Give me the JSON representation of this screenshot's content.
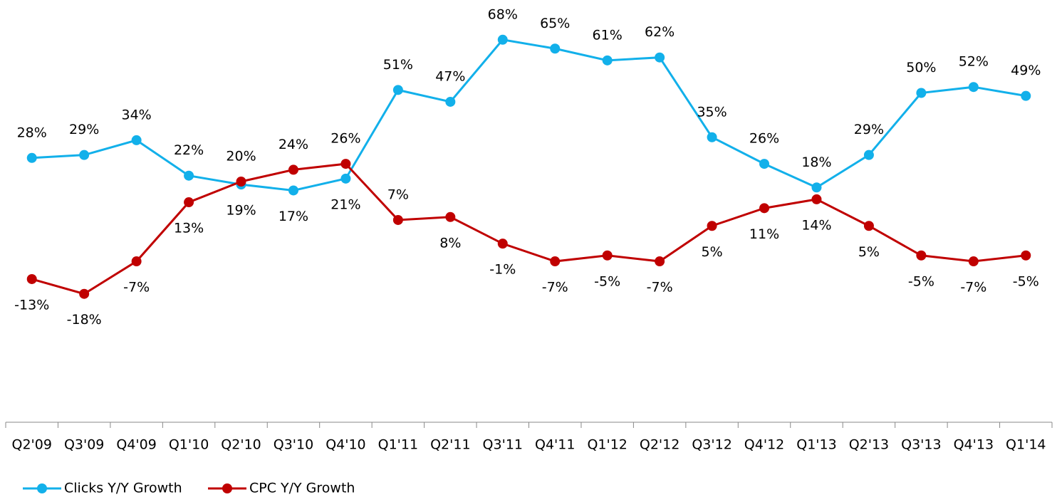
{
  "chart_data": {
    "type": "line",
    "categories": [
      "Q2'09",
      "Q3'09",
      "Q4'09",
      "Q1'10",
      "Q2'10",
      "Q3'10",
      "Q4'10",
      "Q1'11",
      "Q2'11",
      "Q3'11",
      "Q4'11",
      "Q1'12",
      "Q2'12",
      "Q3'12",
      "Q4'12",
      "Q1'13",
      "Q2'13",
      "Q3'13",
      "Q4'13",
      "Q1'14"
    ],
    "series": [
      {
        "name": "Clicks Y/Y Growth",
        "color": "#12b0ea",
        "values": [
          28,
          29,
          34,
          22,
          19,
          17,
          21,
          51,
          47,
          68,
          65,
          61,
          62,
          35,
          26,
          18,
          29,
          50,
          52,
          49
        ],
        "value_labels": [
          "28%",
          "29%",
          "34%",
          "22%",
          "19%",
          "17%",
          "21%",
          "51%",
          "47%",
          "68%",
          "65%",
          "61%",
          "62%",
          "35%",
          "26%",
          "18%",
          "29%",
          "50%",
          "52%",
          "49%"
        ]
      },
      {
        "name": "CPC Y/Y Growth",
        "color": "#c00000",
        "values": [
          -13,
          -18,
          -7,
          13,
          20,
          24,
          26,
          7,
          8,
          -1,
          -7,
          -5,
          -7,
          5,
          11,
          14,
          5,
          -5,
          -7,
          -5
        ],
        "value_labels": [
          "-13%",
          "-18%",
          "-7%",
          "13%",
          "20%",
          "24%",
          "26%",
          "7%",
          "8%",
          "-1%",
          "-7%",
          "-5%",
          "-7%",
          "5%",
          "11%",
          "14%",
          "5%",
          "-5%",
          "-7%",
          "-5%"
        ]
      }
    ],
    "ylim": [
      -30,
      80
    ],
    "legend": "bottom-left"
  }
}
